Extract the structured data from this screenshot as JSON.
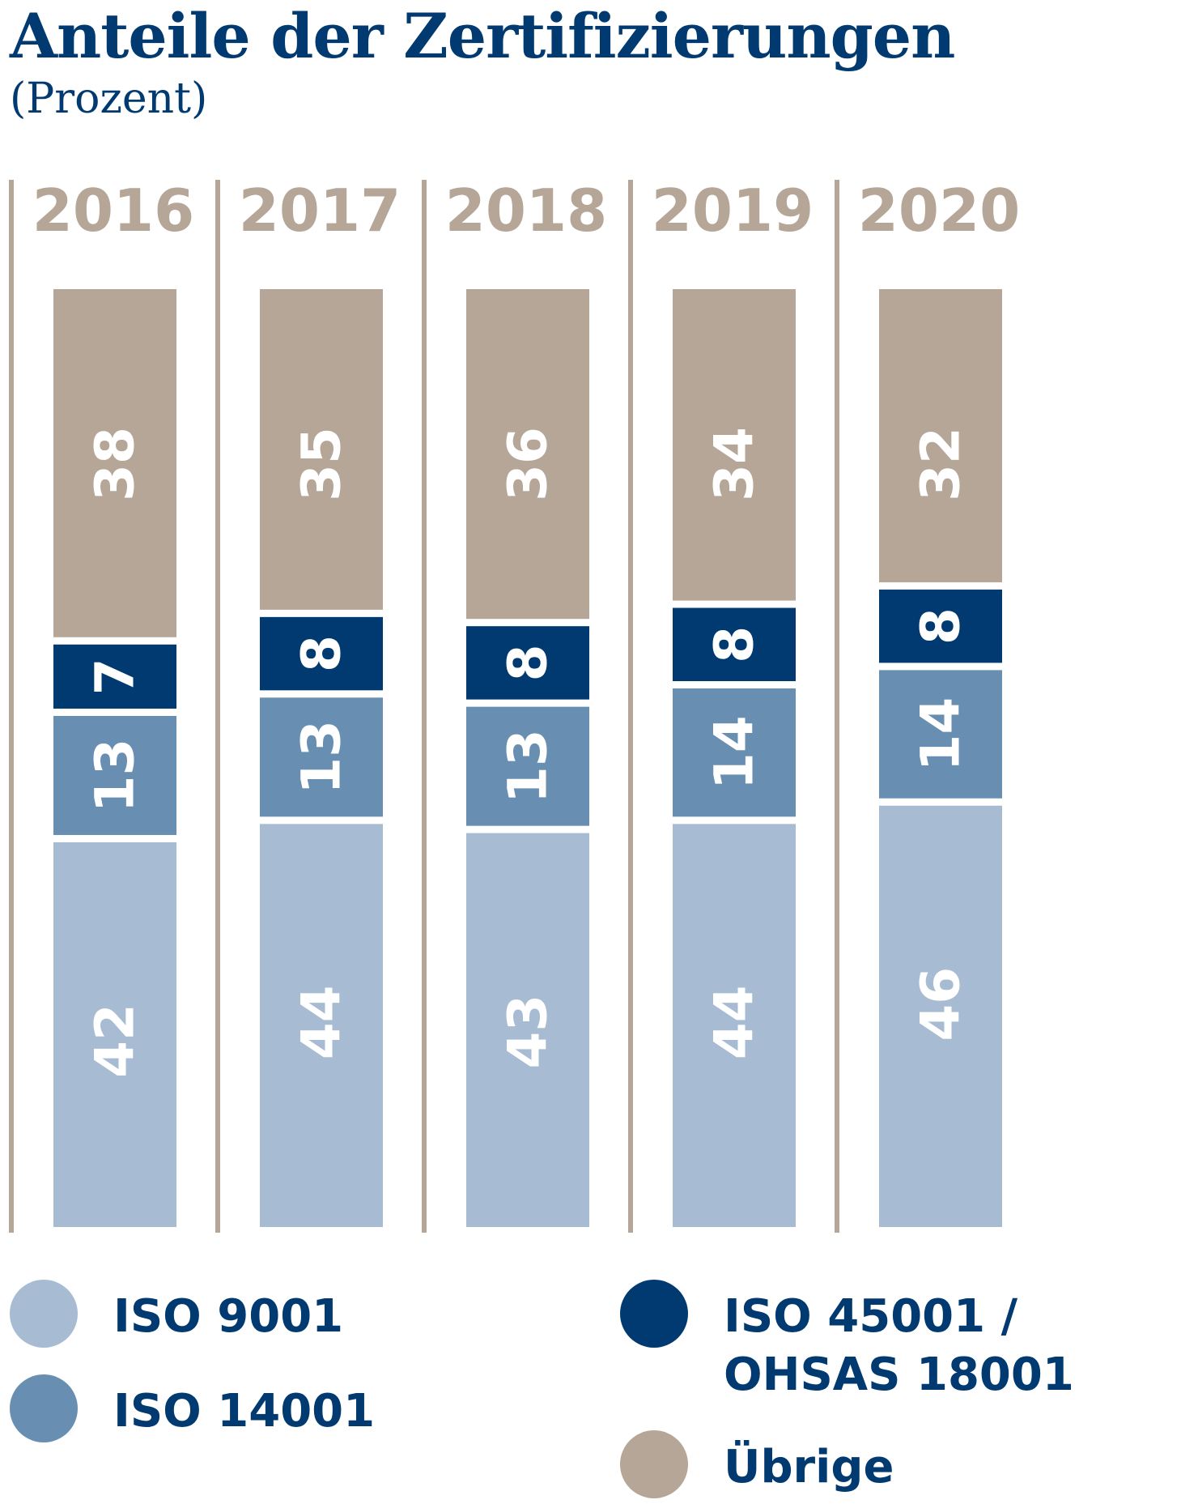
{
  "chart_data": {
    "type": "bar",
    "stacked": true,
    "title": "Anteile der Zertifizierungen",
    "subtitle": "(Prozent)",
    "categories": [
      "2016",
      "2017",
      "2018",
      "2019",
      "2020"
    ],
    "series": [
      {
        "name": "ISO 9001",
        "color": "#a7bcd2",
        "values": [
          42,
          44,
          43,
          44,
          46
        ]
      },
      {
        "name": "ISO 14001",
        "color": "#688fb2",
        "values": [
          13,
          13,
          13,
          14,
          14
        ]
      },
      {
        "name": "ISO 45001 / OHSAS 18001",
        "color": "#003a70",
        "values": [
          7,
          8,
          8,
          8,
          8
        ]
      },
      {
        "name": "Übrige",
        "color": "#b5a697",
        "values": [
          38,
          35,
          36,
          34,
          32
        ]
      }
    ],
    "ylim": [
      0,
      100
    ],
    "grid": false,
    "legend_position": "bottom"
  },
  "colors": {
    "title": "#003a70",
    "year_label": "#b5a697",
    "separator": "#b5a697",
    "value_label": "#ffffff"
  },
  "legend": [
    {
      "label_lines": [
        "ISO 9001"
      ],
      "series_index": 0
    },
    {
      "label_lines": [
        "ISO 14001"
      ],
      "series_index": 1
    },
    {
      "label_lines": [
        "ISO 45001 /",
        "OHSAS 18001"
      ],
      "series_index": 2
    },
    {
      "label_lines": [
        "Übrige"
      ],
      "series_index": 3
    }
  ]
}
